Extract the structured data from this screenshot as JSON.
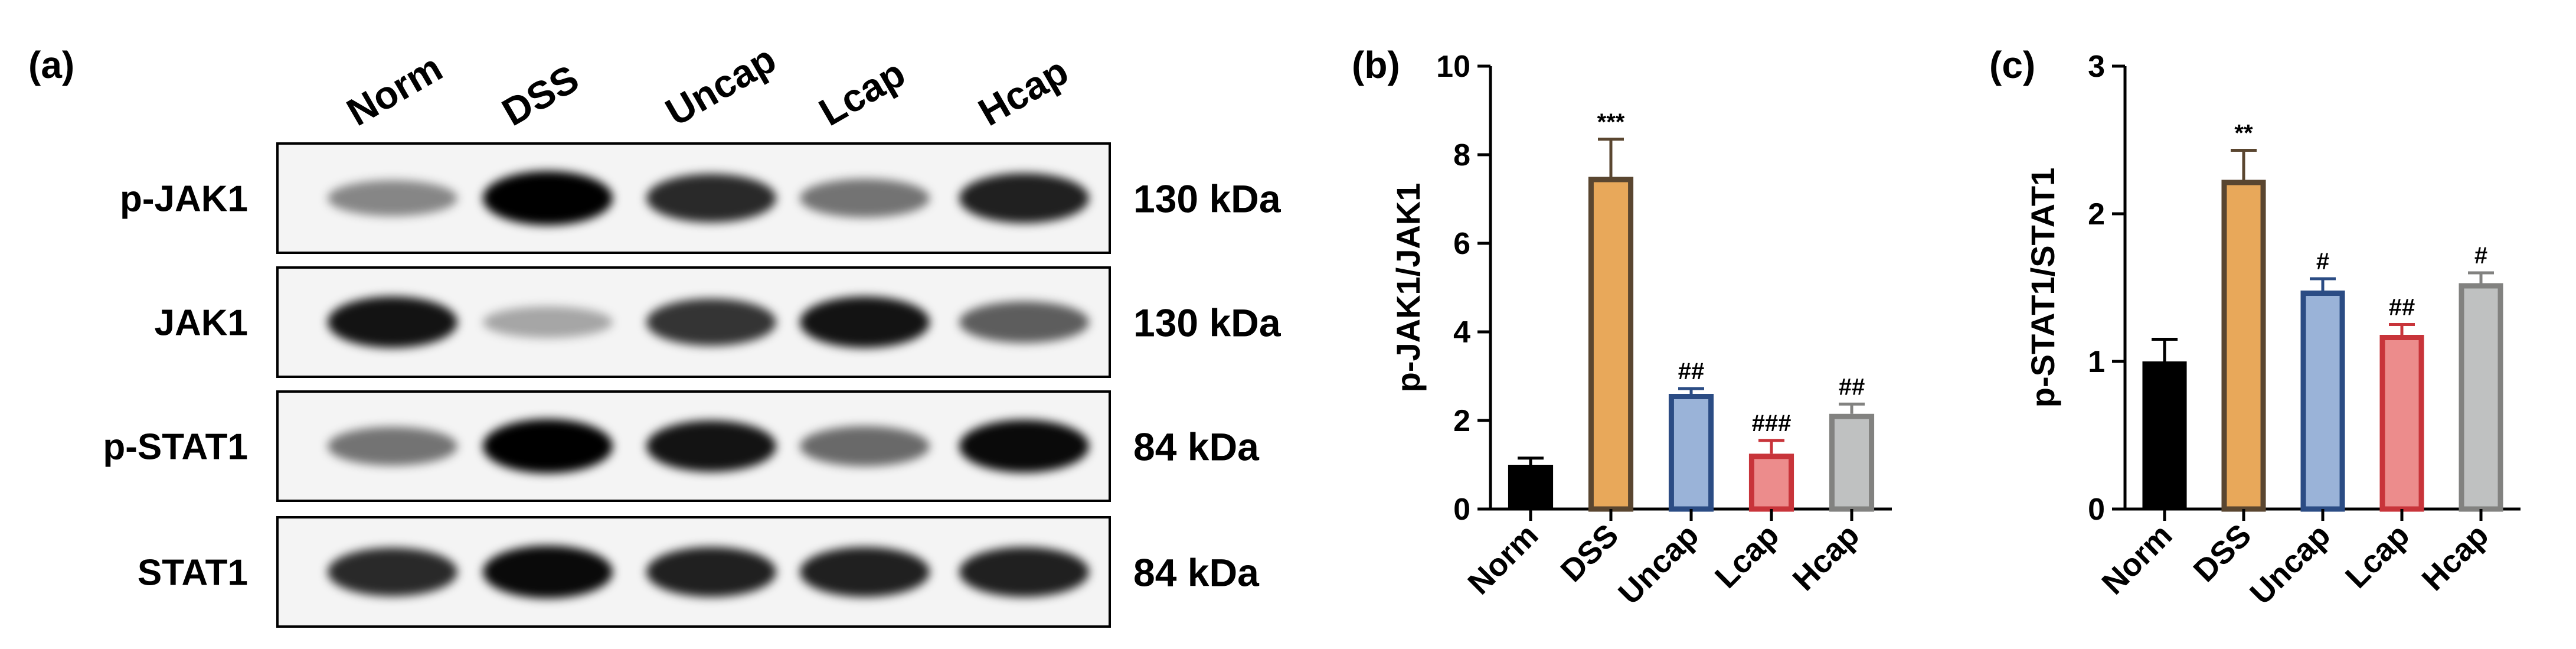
{
  "panels": {
    "a": {
      "label": "(a)",
      "lanes": [
        "Norm",
        "DSS",
        "Uncap",
        "Lcap",
        "Hcap"
      ],
      "blots": [
        {
          "protein": "p-JAK1",
          "mw": "130 kDa",
          "intensity": [
            0.35,
            1.0,
            0.8,
            0.45,
            0.85
          ]
        },
        {
          "protein": "JAK1",
          "mw": "130 kDa",
          "intensity": [
            0.9,
            0.2,
            0.75,
            0.9,
            0.55
          ]
        },
        {
          "protein": "p-STAT1",
          "mw": "84 kDa",
          "intensity": [
            0.45,
            1.0,
            0.9,
            0.5,
            0.95
          ]
        },
        {
          "protein": "STAT1",
          "mw": "84 kDa",
          "intensity": [
            0.8,
            0.95,
            0.85,
            0.85,
            0.85
          ]
        }
      ]
    },
    "b": {
      "label": "(b)"
    },
    "c": {
      "label": "(c)"
    }
  },
  "colors": {
    "Norm": {
      "fill": "#000000",
      "stroke": "#000000"
    },
    "DSS": {
      "fill": "#E8A85A",
      "stroke": "#5A4630"
    },
    "Uncap": {
      "fill": "#9AB3D8",
      "stroke": "#2B4C84"
    },
    "Lcap": {
      "fill": "#EC8C8C",
      "stroke": "#C8343A"
    },
    "Hcap": {
      "fill": "#BFC1C1",
      "stroke": "#828280"
    }
  },
  "chart_data": [
    {
      "type": "bar",
      "panel": "b",
      "categories": [
        "Norm",
        "DSS",
        "Uncap",
        "Lcap",
        "Hcap"
      ],
      "values": [
        1.0,
        7.5,
        2.6,
        1.25,
        2.15
      ],
      "errors": [
        0.15,
        0.85,
        0.12,
        0.3,
        0.22
      ],
      "annotations": [
        "",
        "***",
        "##",
        "###",
        "##"
      ],
      "ylabel": "p-JAK1/JAK1",
      "xlabel": "",
      "ylim": [
        0,
        10
      ],
      "yticks": [
        0,
        2,
        4,
        6,
        8,
        10
      ]
    },
    {
      "type": "bar",
      "panel": "c",
      "categories": [
        "Norm",
        "DSS",
        "Uncap",
        "Lcap",
        "Hcap"
      ],
      "values": [
        1.0,
        2.23,
        1.48,
        1.18,
        1.53
      ],
      "errors": [
        0.15,
        0.2,
        0.08,
        0.07,
        0.07
      ],
      "annotations": [
        "",
        "**",
        "#",
        "##",
        "#"
      ],
      "ylabel": "p-STAT1/STAT1",
      "xlabel": "",
      "ylim": [
        0,
        3
      ],
      "yticks": [
        0,
        1,
        2,
        3
      ]
    }
  ]
}
